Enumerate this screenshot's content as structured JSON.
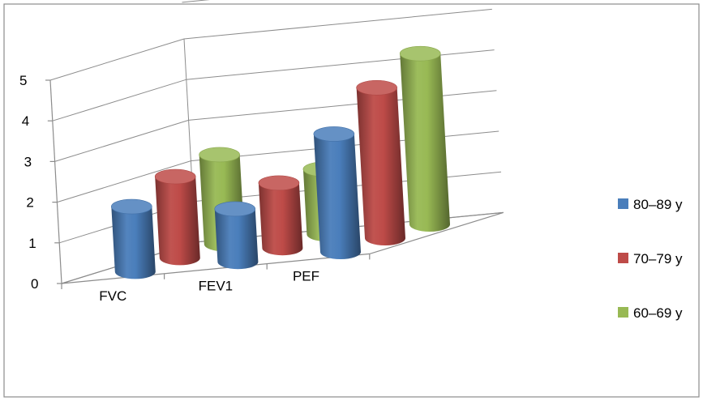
{
  "chart_data": {
    "type": "bar",
    "variant": "3d-cylinder",
    "categories": [
      "FVC",
      "FEV1",
      "PEF"
    ],
    "series": [
      {
        "name": "80–89 y",
        "values": [
          1.6,
          1.3,
          2.9
        ],
        "color": "#4a7ebb"
      },
      {
        "name": "70–79 y",
        "values": [
          2.0,
          1.6,
          3.7
        ],
        "color": "#be4b48"
      },
      {
        "name": "60–69 y",
        "values": [
          2.2,
          1.6,
          4.2
        ],
        "color": "#98b954"
      }
    ],
    "yticks": [
      "0",
      "1",
      "2",
      "3",
      "4",
      "5"
    ],
    "ylim": [
      0,
      5
    ],
    "grid": true,
    "legend": "right",
    "title": "",
    "xlabel": "",
    "ylabel": ""
  }
}
